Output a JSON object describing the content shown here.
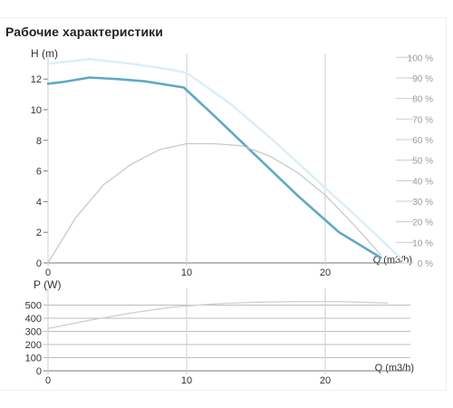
{
  "page": {
    "title": "Рабочие характеристики"
  },
  "colors": {
    "head_curve": "#5fa9c4",
    "head_max_curve": "#dbeef6",
    "efficiency_curve": "#c9c9c9",
    "power_curve": "#d0d0d0",
    "axis": "#777777",
    "grid": "#bdbdbd",
    "text": "#333333",
    "muted_text": "#9a9a9a"
  },
  "chart_data": [
    {
      "type": "line",
      "name": "head-chart",
      "title": "",
      "xlabel": "Q (m3/h)",
      "ylabel": "H (m)",
      "y2label": "",
      "xlim": [
        0,
        26
      ],
      "ylim": [
        0,
        14
      ],
      "y2lim": [
        0,
        100
      ],
      "x_ticks": [
        "0",
        "10",
        "20"
      ],
      "y_ticks": [
        "0",
        "2",
        "4",
        "6",
        "8",
        "10",
        "12"
      ],
      "y2_ticks": [
        "0 %",
        "10 %",
        "20 %",
        "30 %",
        "40 %",
        "50 %",
        "60 %",
        "70 %",
        "80 %",
        "90 %",
        "100 %"
      ],
      "grid": false,
      "legend": "none",
      "series": [
        {
          "role": "head-max",
          "axis": "left",
          "x": [
            0,
            3,
            6,
            9,
            10,
            13,
            16,
            20,
            23,
            25.8
          ],
          "y": [
            13.0,
            13.3,
            13.0,
            12.6,
            12.4,
            10.5,
            8.2,
            4.9,
            2.4,
            0.0
          ]
        },
        {
          "role": "head",
          "axis": "left",
          "x": [
            0,
            1,
            3,
            5,
            7,
            9.8,
            12,
            15,
            18,
            21,
            24
          ],
          "y": [
            11.7,
            11.8,
            12.1,
            12.0,
            11.85,
            11.45,
            9.6,
            7.0,
            4.4,
            2.0,
            0.35
          ]
        },
        {
          "role": "efficiency",
          "axis": "right",
          "x": [
            0,
            2,
            4,
            6,
            8,
            10,
            12,
            14,
            16,
            18,
            20,
            22,
            24
          ],
          "y": [
            0,
            22,
            38,
            48,
            55,
            58,
            58,
            57,
            52,
            44,
            33,
            19,
            4
          ]
        }
      ]
    },
    {
      "type": "line",
      "name": "power-chart",
      "title": "",
      "xlabel": "Q (m3/h)",
      "ylabel": "P (W)",
      "xlim": [
        0,
        26
      ],
      "ylim": [
        0,
        560
      ],
      "x_ticks": [
        "0",
        "10",
        "20"
      ],
      "y_ticks": [
        "0",
        "100",
        "200",
        "300",
        "400",
        "500"
      ],
      "grid": true,
      "legend": "none",
      "series": [
        {
          "role": "power",
          "x": [
            0,
            3,
            6,
            9,
            12,
            15,
            18,
            21,
            24.5
          ],
          "y": [
            322,
            385,
            440,
            485,
            510,
            522,
            527,
            527,
            515
          ]
        }
      ]
    }
  ]
}
